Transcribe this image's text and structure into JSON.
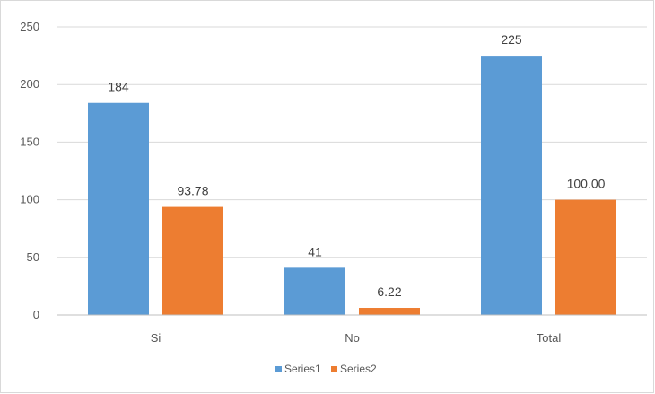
{
  "chart_data": {
    "type": "bar",
    "title": "",
    "xlabel": "",
    "ylabel": "",
    "categories": [
      "Si",
      "No",
      "Total"
    ],
    "series": [
      {
        "name": "Series1",
        "values": [
          184,
          41,
          225
        ],
        "labels": [
          "184",
          "41",
          "225"
        ],
        "color": "#5b9bd5"
      },
      {
        "name": "Series2",
        "values": [
          93.78,
          6.22,
          100.0
        ],
        "labels": [
          "93.78",
          "6.22",
          "100.00"
        ],
        "color": "#ed7d31"
      }
    ],
    "ylim": [
      0,
      250
    ],
    "yticks": [
      "0",
      "50",
      "100",
      "150",
      "200",
      "250"
    ],
    "grid": true,
    "legend_position": "bottom"
  }
}
